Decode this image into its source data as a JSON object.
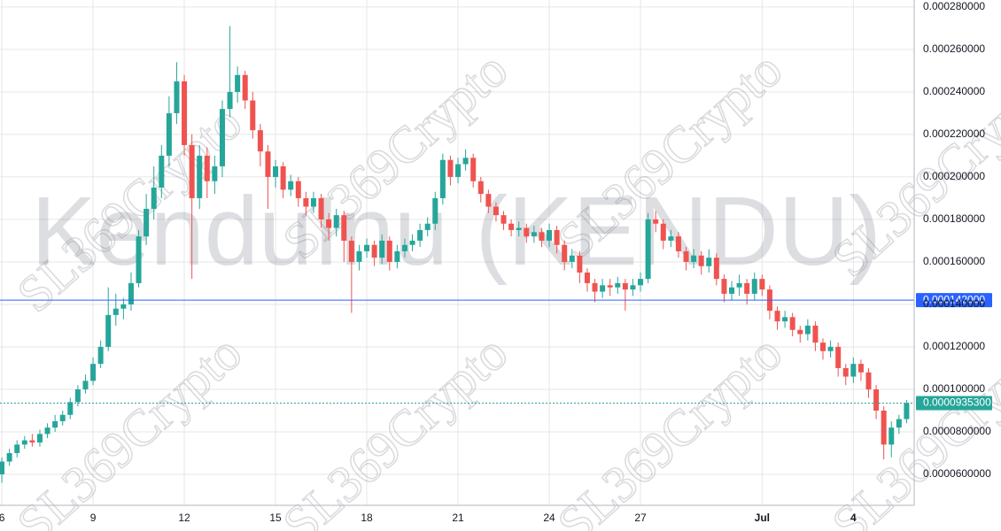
{
  "chart_data": {
    "type": "candlestick",
    "watermark": "KenduInu (KENDU)",
    "brand_watermark": "SL369Crypto",
    "up_color": "#26a69a",
    "down_color": "#ef5350",
    "grid": true,
    "x": [
      6,
      6.25,
      6.5,
      6.75,
      7,
      7.25,
      7.5,
      7.75,
      8,
      8.25,
      8.5,
      8.75,
      9,
      9.25,
      9.5,
      9.75,
      10,
      10.25,
      10.5,
      10.75,
      11,
      11.25,
      11.5,
      11.75,
      12,
      12.25,
      12.5,
      12.75,
      13,
      13.25,
      13.5,
      13.75,
      14,
      14.25,
      14.5,
      14.75,
      15,
      15.25,
      15.5,
      15.75,
      16,
      16.25,
      16.5,
      16.75,
      17,
      17.25,
      17.5,
      17.75,
      18,
      18.25,
      18.5,
      18.75,
      19,
      19.25,
      19.5,
      19.75,
      20,
      20.25,
      20.5,
      20.75,
      21,
      21.25,
      21.5,
      21.75,
      22,
      22.25,
      22.5,
      22.75,
      23,
      23.25,
      23.5,
      23.75,
      24,
      24.25,
      24.5,
      24.75,
      25,
      25.25,
      25.5,
      25.75,
      26,
      26.25,
      26.5,
      26.75,
      27,
      27.25,
      27.5,
      27.75,
      28,
      28.25,
      28.5,
      28.75,
      29,
      29.25,
      29.5,
      29.75,
      30,
      30.25,
      30.5,
      30.75,
      31,
      31.25,
      31.5,
      31.75,
      32,
      32.25,
      32.5,
      32.75,
      33,
      33.25,
      33.5,
      33.75,
      34,
      34.25,
      34.5,
      34.75,
      35,
      35.25,
      35.5,
      35.75
    ],
    "open": [
      6e-05,
      6.6e-05,
      7e-05,
      7.4e-05,
      7.6e-05,
      7.5e-05,
      7.9e-05,
      8.2e-05,
      8.5e-05,
      8.8e-05,
      9.4e-05,
      0.0001,
      0.000104,
      0.000112,
      0.00012,
      0.000135,
      0.000138,
      0.00014,
      0.00015,
      0.000172,
      0.000185,
      0.000195,
      0.00021,
      0.00023,
      0.000245,
      0.000215,
      0.00019,
      0.00021,
      0.000198,
      0.000205,
      0.000232,
      0.00024,
      0.000248,
      0.000236,
      0.000222,
      0.000212,
      0.0002,
      0.000205,
      0.000194,
      0.000198,
      0.00019,
      0.000186,
      0.00019,
      0.00018,
      0.000176,
      0.000182,
      0.00017,
      0.00016,
      0.000165,
      0.000168,
      0.000162,
      0.00017,
      0.00016,
      0.000165,
      0.000168,
      0.00017,
      0.000175,
      0.000178,
      0.00019,
      0.000208,
      0.0002,
      0.000206,
      0.000209,
      0.000198,
      0.000192,
      0.000186,
      0.000182,
      0.000178,
      0.000175,
      0.000176,
      0.000172,
      0.000174,
      0.00017,
      0.000175,
      0.000168,
      0.00016,
      0.000163,
      0.000155,
      0.00015,
      0.000146,
      0.000149,
      0.000148,
      0.00015,
      0.000147,
      0.000149,
      0.000152,
      0.00018,
      0.000178,
      0.00017,
      0.000172,
      0.000165,
      0.00016,
      0.000163,
      0.000158,
      0.000162,
      0.000152,
      0.000145,
      0.000148,
      0.00015,
      0.000145,
      0.000152,
      0.000147,
      0.000137,
      0.000132,
      0.000134,
      0.000128,
      0.000126,
      0.00013,
      0.000122,
      0.000118,
      0.00012,
      0.00011,
      0.000106,
      0.000112,
      0.000108,
      0.0001,
      9e-05,
      7.4e-05,
      8.2e-05,
      8.6e-05
    ],
    "high": [
      6.8e-05,
      7.2e-05,
      7.6e-05,
      7.8e-05,
      7.9e-05,
      8.1e-05,
      8.4e-05,
      8.8e-05,
      9e-05,
      9.6e-05,
      0.000102,
      0.000107,
      0.000115,
      0.000123,
      0.000148,
      0.000145,
      0.000143,
      0.000155,
      0.000175,
      0.000192,
      0.000205,
      0.000215,
      0.000238,
      0.000254,
      0.000248,
      0.00022,
      0.000215,
      0.000214,
      0.00021,
      0.000236,
      0.000271,
      0.000252,
      0.00025,
      0.00024,
      0.000225,
      0.000215,
      0.000208,
      0.000207,
      0.000201,
      0.0002,
      0.000193,
      0.000193,
      0.000192,
      0.000183,
      0.000185,
      0.000184,
      0.000172,
      0.000168,
      0.000171,
      0.00017,
      0.000173,
      0.000172,
      0.000168,
      0.000171,
      0.000173,
      0.000178,
      0.000181,
      0.000193,
      0.000211,
      0.00021,
      0.000209,
      0.000213,
      0.000211,
      0.0002,
      0.000194,
      0.000188,
      0.000184,
      0.00018,
      0.000179,
      0.000178,
      0.000177,
      0.000176,
      0.000178,
      0.000177,
      0.00017,
      0.000166,
      0.000165,
      0.000157,
      0.000152,
      0.000152,
      0.000152,
      0.000153,
      0.000152,
      0.000152,
      0.000155,
      0.000183,
      0.000184,
      0.00018,
      0.000175,
      0.000174,
      0.000167,
      0.000166,
      0.000165,
      0.000166,
      0.000164,
      0.000154,
      0.000151,
      0.000154,
      0.000152,
      0.000155,
      0.000154,
      0.000149,
      0.000139,
      0.000137,
      0.000136,
      0.00013,
      0.000133,
      0.000132,
      0.000124,
      0.000123,
      0.000122,
      0.000112,
      0.000115,
      0.000114,
      0.00011,
      0.000102,
      9.2e-05,
      8.5e-05,
      8.8e-05,
      9.5e-05
    ],
    "low": [
      5.6e-05,
      6.4e-05,
      6.8e-05,
      7.2e-05,
      7.3e-05,
      7.3e-05,
      7.7e-05,
      8e-05,
      8.3e-05,
      8.6e-05,
      9.2e-05,
      9.8e-05,
      0.000102,
      0.00011,
      0.000118,
      0.00013,
      0.000133,
      0.000137,
      0.000148,
      0.000168,
      0.00018,
      0.00019,
      0.000205,
      0.000225,
      0.00021,
      0.000152,
      0.000185,
      0.00019,
      0.000192,
      0.0002,
      0.000228,
      0.000235,
      0.000232,
      0.000218,
      0.000205,
      0.000185,
      0.000195,
      0.00019,
      0.000191,
      0.000186,
      0.000182,
      0.000183,
      0.000176,
      0.00017,
      0.000172,
      0.00016,
      0.000136,
      0.000156,
      0.000162,
      0.000158,
      0.000159,
      0.000156,
      0.000157,
      0.000162,
      0.000165,
      0.000167,
      0.000172,
      0.000175,
      0.000187,
      0.000196,
      0.000197,
      0.000203,
      0.000195,
      0.000188,
      0.000183,
      0.000179,
      0.000175,
      0.000172,
      0.000172,
      0.000169,
      0.000169,
      0.000167,
      0.000167,
      0.000164,
      0.000156,
      0.000157,
      0.00015,
      0.000146,
      0.000141,
      0.000143,
      0.000144,
      0.000145,
      0.000137,
      0.000144,
      0.000146,
      0.00015,
      0.000174,
      0.000166,
      0.000167,
      0.000162,
      0.000156,
      0.000157,
      0.000154,
      0.000155,
      0.000149,
      0.000141,
      0.000142,
      0.000144,
      0.00014,
      0.000142,
      0.000144,
      0.000133,
      0.000128,
      0.000129,
      0.000125,
      0.000122,
      0.000123,
      0.000118,
      0.000114,
      0.000115,
      0.000106,
      0.000102,
      0.000103,
      0.000104,
      9.6e-05,
      8.6e-05,
      6.7e-05,
      6.8e-05,
      7.9e-05,
      8.4e-05
    ],
    "close": [
      6.6e-05,
      7e-05,
      7.4e-05,
      7.6e-05,
      7.5e-05,
      7.9e-05,
      8.2e-05,
      8.5e-05,
      8.8e-05,
      9.4e-05,
      0.0001,
      0.000104,
      0.000112,
      0.00012,
      0.000135,
      0.000138,
      0.00014,
      0.00015,
      0.000172,
      0.000185,
      0.000195,
      0.00021,
      0.00023,
      0.000245,
      0.000215,
      0.00019,
      0.00021,
      0.000198,
      0.000205,
      0.000232,
      0.00024,
      0.000248,
      0.000236,
      0.000222,
      0.000212,
      0.0002,
      0.000205,
      0.000194,
      0.000198,
      0.00019,
      0.000186,
      0.00019,
      0.00018,
      0.000176,
      0.000182,
      0.00017,
      0.00016,
      0.000165,
      0.000168,
      0.000162,
      0.00017,
      0.00016,
      0.000165,
      0.000168,
      0.00017,
      0.000175,
      0.000178,
      0.00019,
      0.000208,
      0.0002,
      0.000206,
      0.000209,
      0.000198,
      0.000192,
      0.000186,
      0.000182,
      0.000178,
      0.000175,
      0.000176,
      0.000172,
      0.000174,
      0.00017,
      0.000175,
      0.000168,
      0.00016,
      0.000163,
      0.000155,
      0.00015,
      0.000146,
      0.000149,
      0.000148,
      0.00015,
      0.000147,
      0.000149,
      0.000152,
      0.00018,
      0.000178,
      0.00017,
      0.000172,
      0.000165,
      0.00016,
      0.000163,
      0.000158,
      0.000162,
      0.000152,
      0.000145,
      0.000148,
      0.00015,
      0.000145,
      0.000152,
      0.000147,
      0.000137,
      0.000132,
      0.000134,
      0.000128,
      0.000126,
      0.00013,
      0.000122,
      0.000118,
      0.00012,
      0.00011,
      0.000106,
      0.000112,
      0.000108,
      0.0001,
      9e-05,
      7.4e-05,
      8.2e-05,
      8.6e-05,
      9.353e-05
    ],
    "xlim": [
      5.94,
      36
    ],
    "xticks": [
      {
        "value": 6,
        "label": "6"
      },
      9,
      12,
      15,
      18,
      21,
      24,
      27,
      {
        "value": 31,
        "label": "Jul"
      },
      {
        "value": 34,
        "label": "4"
      }
    ],
    "ylim": [
      4.54e-05,
      0.0002833
    ],
    "yticks": [
      {
        "value": 6e-05,
        "label": "0.0000600000"
      },
      {
        "value": 8e-05,
        "label": "0.0000800000"
      },
      {
        "value": 0.0001,
        "label": "0.000100000"
      },
      {
        "value": 0.00012,
        "label": "0.000120000"
      },
      {
        "value": 0.00014,
        "label": "0.000140000"
      },
      {
        "value": 0.00016,
        "label": "0.000160000"
      },
      {
        "value": 0.00018,
        "label": "0.000180000"
      },
      {
        "value": 0.0002,
        "label": "0.000200000"
      },
      {
        "value": 0.00022,
        "label": "0.000220000"
      },
      {
        "value": 0.00024,
        "label": "0.000240000"
      },
      {
        "value": 0.00026,
        "label": "0.000260000"
      },
      {
        "value": 0.00028,
        "label": "0.000280000"
      }
    ],
    "price_lines": [
      {
        "value": 0.000142,
        "label": "0.000142000",
        "color": "#2962ff",
        "style": "solid"
      },
      {
        "value": 9.353e-05,
        "label": "0.0000935300",
        "color": "#26a69a",
        "style": "dotted"
      }
    ]
  }
}
